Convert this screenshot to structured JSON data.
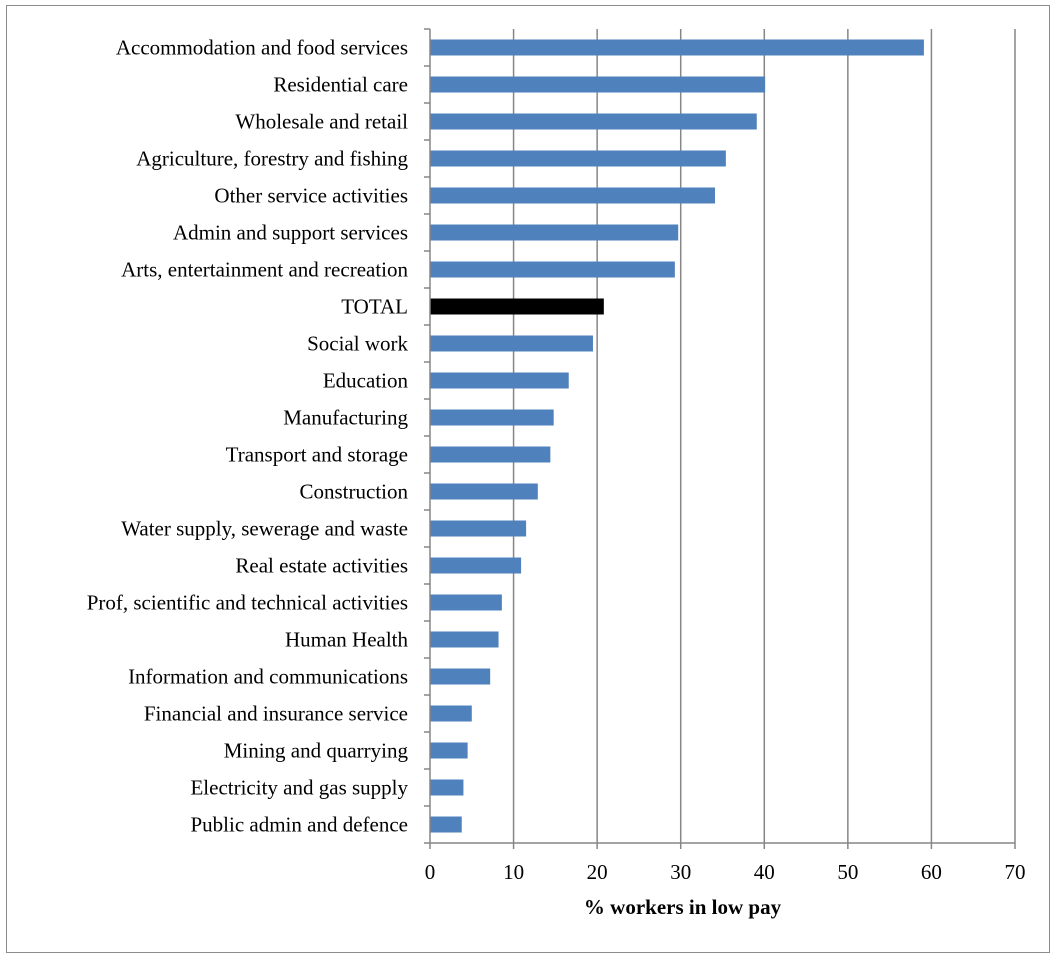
{
  "chart_data": {
    "type": "bar",
    "orientation": "horizontal",
    "categories": [
      "Accommodation and food services",
      "Residential care",
      "Wholesale and retail",
      "Agriculture, forestry and fishing",
      "Other service activities",
      "Admin and support services",
      "Arts, entertainment and recreation",
      "TOTAL",
      "Social work",
      "Education",
      "Manufacturing",
      "Transport and storage",
      "Construction",
      "Water supply, sewerage and waste",
      "Real estate activities",
      "Prof, scientific and technical activities",
      "Human Health",
      "Information and communications",
      "Financial and insurance service",
      "Mining and quarrying",
      "Electricity and gas supply",
      "Public admin and defence"
    ],
    "values": [
      59.1,
      40.1,
      39.1,
      35.4,
      34.1,
      29.7,
      29.3,
      20.8,
      19.5,
      16.6,
      14.8,
      14.4,
      12.9,
      11.5,
      10.9,
      8.6,
      8.2,
      7.2,
      5.0,
      4.5,
      4.0,
      3.8
    ],
    "highlight_category": "TOTAL",
    "colors": {
      "bar": "#4f81bd",
      "highlight": "#000000",
      "grid": "#868686",
      "axis": "#868686"
    },
    "xlabel": "% workers in low pay",
    "xlim": [
      0,
      70
    ],
    "xticks": [
      0,
      10,
      20,
      30,
      40,
      50,
      60,
      70
    ],
    "grid": true,
    "legend": "none"
  }
}
